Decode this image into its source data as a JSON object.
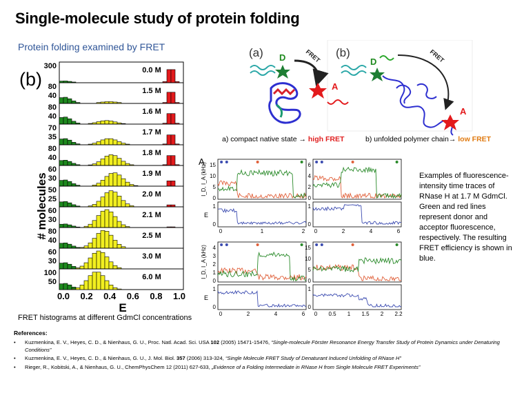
{
  "slide": {
    "title": "Single-molecule study of protein folding",
    "subtitle": "Protein folding examined by FRET",
    "hist_caption": "FRET histograms at different GdmCl concentrations"
  },
  "histograms": {
    "panel_label": "(b)",
    "ylabel": "# molecules",
    "xlabel": "E",
    "x_ticks": [
      "0.0",
      "0.2",
      "0.4",
      "0.6",
      "0.8",
      "1.0"
    ],
    "colors": {
      "unfolded": "#f2ef20",
      "folded": "#e31a1c",
      "donor_only": "#1e8a1e"
    },
    "panels": [
      {
        "conc": "0.0 M",
        "ytick_top": "300",
        "ytick_mid": ""
      },
      {
        "conc": "1.5 M",
        "ytick_top": "80",
        "ytick_mid": "40"
      },
      {
        "conc": "1.6 M",
        "ytick_top": "80",
        "ytick_mid": "40"
      },
      {
        "conc": "1.7 M",
        "ytick_top": "70",
        "ytick_mid": "35"
      },
      {
        "conc": "1.8 M",
        "ytick_top": "80",
        "ytick_mid": "40"
      },
      {
        "conc": "1.9 M",
        "ytick_top": "60",
        "ytick_mid": "30"
      },
      {
        "conc": "2.0 M",
        "ytick_top": "50",
        "ytick_mid": "25"
      },
      {
        "conc": "2.1 M",
        "ytick_top": "60",
        "ytick_mid": "30"
      },
      {
        "conc": "2.5 M",
        "ytick_top": "80",
        "ytick_mid": "40"
      },
      {
        "conc": "3.0 M",
        "ytick_top": "60",
        "ytick_mid": "30"
      },
      {
        "conc": "6.0 M",
        "ytick_top": "100",
        "ytick_mid": "50"
      }
    ]
  },
  "schematic": {
    "label_a": "(a)",
    "label_b": "(b)",
    "donor": "D",
    "acceptor": "A",
    "fret": "FRET",
    "caption_a_pre": "a) compact native state → ",
    "caption_a_hl": "high FRET",
    "caption_b_pre": "b) unfolded polymer chain→ ",
    "caption_b_hl": "low FRET"
  },
  "traces": {
    "panel_label": "A",
    "ylabel_top": "I_D, I_A (kHz)",
    "ylabel_e": "E",
    "colors": {
      "donor": "#2a8a2a",
      "acceptor": "#e0603a",
      "efficiency": "#3b4bb0"
    },
    "panels": [
      {
        "yticks": [
          "15",
          "10",
          "5",
          "0"
        ],
        "xticks": [
          "0",
          "1",
          "2"
        ],
        "eticks": [
          "1",
          "0"
        ]
      },
      {
        "yticks": [
          "6",
          "4",
          "2",
          "0"
        ],
        "xticks": [
          "0",
          "2",
          "4",
          "6"
        ],
        "eticks": [
          "1",
          "0"
        ]
      },
      {
        "yticks": [
          "4",
          "3",
          "2",
          "1",
          "0"
        ],
        "xticks": [
          "0",
          "2",
          "4",
          "6"
        ],
        "eticks": [
          "1",
          "0"
        ]
      },
      {
        "yticks": [
          "15",
          "10",
          "5",
          "0"
        ],
        "xticks": [
          "0",
          "0.5",
          "1",
          "1.5",
          "2",
          "2.2"
        ],
        "eticks": [
          "1",
          "0"
        ]
      }
    ],
    "description": "Examples of fluorescence-intensity time traces of RNase H at 1.7 M GdmCl. Green and red lines represent donor and acceptor fluorescence, respectively. The resulting FRET efficiency is shown in blue."
  },
  "references": {
    "heading": "References:",
    "items": [
      {
        "pre": "Kuzmenkina, E. V., Heyes, C. D., & Nienhaus, G. U., Proc. Natl. Acad. Sci. USA ",
        "bold": "102",
        "mid": " (2005) 15471-15476, ",
        "italic": "“Single-molecule Förster Resonance Energy Transfer Study of Protein Dynamics under Denaturing Conditions”"
      },
      {
        "pre": "Kuzmenkina, E. V., Heyes, C. D., & Nienhaus, G. U., J. Mol. Biol. ",
        "bold": "357",
        "mid": " (2006) 313-324, ",
        "italic": "“Single Molecule FRET Study of Denaturant Induced Unfolding of RNase H”"
      },
      {
        "pre": "Rieger, R., Kobitski, A., & Nienhaus, G. U., ChemPhysChem 12 (2011) 627-633, ",
        "bold": "",
        "mid": "",
        "italic": "„Evidence of a Folding Intermediate in RNase H from Single Molecule FRET Experiments”"
      }
    ]
  }
}
